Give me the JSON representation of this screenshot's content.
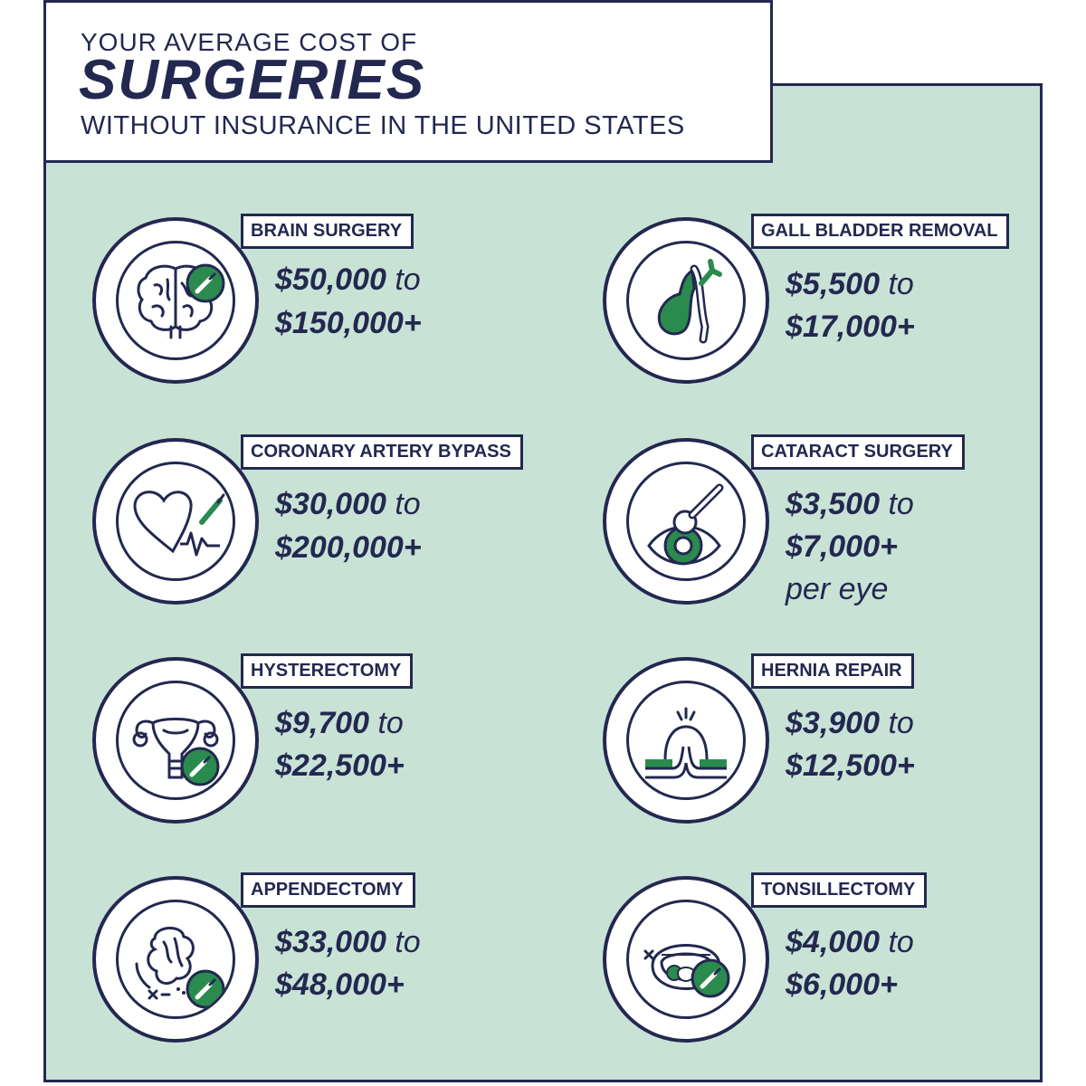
{
  "header": {
    "line1": "YOUR AVERAGE COST OF",
    "line2": "SURGERIES",
    "line3": "WITHOUT INSURANCE IN THE UNITED STATES"
  },
  "connector": "to",
  "colors": {
    "navy": "#232850",
    "mint": "#c8e3d6",
    "green": "#2b8a4e"
  },
  "surgeries": [
    {
      "name": "BRAIN SURGERY",
      "low": "$50,000",
      "high": "$150,000+",
      "icon": "brain-icon"
    },
    {
      "name": "GALL BLADDER REMOVAL",
      "low": "$5,500",
      "high": "$17,000+",
      "icon": "gallbladder-icon"
    },
    {
      "name": "CORONARY ARTERY BYPASS",
      "low": "$30,000",
      "high": "$200,000+",
      "icon": "heart-icon"
    },
    {
      "name": "CATARACT SURGERY",
      "low": "$3,500",
      "high": "$7,000+",
      "note": "per eye",
      "icon": "eye-icon"
    },
    {
      "name": "HYSTERECTOMY",
      "low": "$9,700",
      "high": "$22,500+",
      "icon": "uterus-icon"
    },
    {
      "name": "HERNIA REPAIR",
      "low": "$3,900",
      "high": "$12,500+",
      "icon": "hernia-icon"
    },
    {
      "name": "APPENDECTOMY",
      "low": "$33,000",
      "high": "$48,000+",
      "icon": "intestine-icon"
    },
    {
      "name": "TONSILLECTOMY",
      "low": "$4,000",
      "high": "$6,000+",
      "icon": "mouth-icon"
    }
  ]
}
